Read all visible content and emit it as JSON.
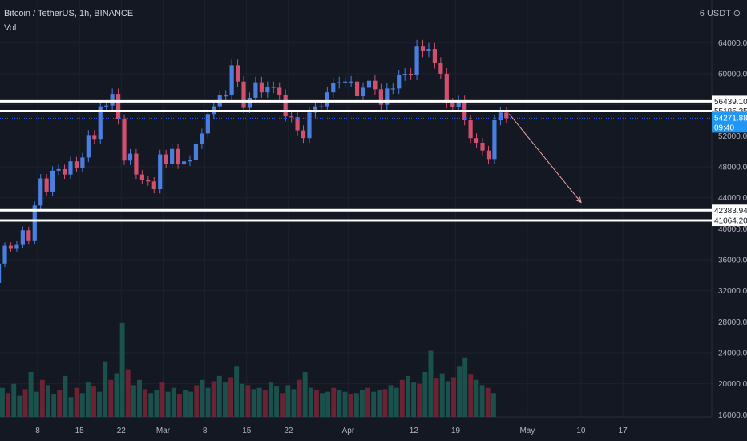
{
  "header": {
    "title": "Bitcoin / TetherUS, 1h, BINANCE",
    "indicator": "Vol",
    "currency": "6 USDT ⊙"
  },
  "chart_data": {
    "type": "candlestick",
    "title": "Bitcoin / TetherUS, 1h, BINANCE",
    "xlabel": "",
    "ylabel": "",
    "ylim": [
      15000,
      69000
    ],
    "y_ticks": [
      16000,
      20000,
      24000,
      28000,
      32000,
      36000,
      40000,
      44000,
      48000,
      52000,
      56000,
      60000,
      64000
    ],
    "x_ticks": [
      "8",
      "15",
      "22",
      "Mar",
      "8",
      "15",
      "22",
      "Apr",
      "12",
      "19",
      "May",
      "10",
      "17"
    ],
    "grid": true,
    "horizontal_levels": [
      {
        "value": 56439.1,
        "label": "56439.10"
      },
      {
        "value": 55185.35,
        "label": "55185.35"
      },
      {
        "value": 42383.94,
        "label": "42383.94"
      },
      {
        "value": 41064.2,
        "label": "41064.20"
      }
    ],
    "last_price": {
      "value": 54271.88,
      "label": "54271.88",
      "countdown": "09:40"
    },
    "price_path": [
      {
        "x": "Feb 1",
        "y": 33000
      },
      {
        "x": "Feb 2",
        "y": 35500
      },
      {
        "x": "Feb 3",
        "y": 37800
      },
      {
        "x": "Feb 4",
        "y": 37500
      },
      {
        "x": "Feb 5",
        "y": 38000
      },
      {
        "x": "Feb 6",
        "y": 39800
      },
      {
        "x": "Feb 7",
        "y": 38500
      },
      {
        "x": "Feb 8",
        "y": 43000
      },
      {
        "x": "Feb 9",
        "y": 46500
      },
      {
        "x": "Feb 10",
        "y": 44800
      },
      {
        "x": "Feb 11",
        "y": 47500
      },
      {
        "x": "Feb 12",
        "y": 47700
      },
      {
        "x": "Feb 13",
        "y": 47000
      },
      {
        "x": "Feb 14",
        "y": 48700
      },
      {
        "x": "Feb 15",
        "y": 47900
      },
      {
        "x": "Feb 16",
        "y": 49200
      },
      {
        "x": "Feb 17",
        "y": 52100
      },
      {
        "x": "Feb 18",
        "y": 51600
      },
      {
        "x": "Feb 19",
        "y": 55800
      },
      {
        "x": "Feb 20",
        "y": 55900
      },
      {
        "x": "Feb 21",
        "y": 57400
      },
      {
        "x": "Feb 22",
        "y": 54100
      },
      {
        "x": "Feb 23",
        "y": 48800
      },
      {
        "x": "Feb 24",
        "y": 49700
      },
      {
        "x": "Feb 25",
        "y": 47000
      },
      {
        "x": "Feb 26",
        "y": 46300
      },
      {
        "x": "Feb 27",
        "y": 46100
      },
      {
        "x": "Feb 28",
        "y": 45100
      },
      {
        "x": "Mar 1",
        "y": 49600
      },
      {
        "x": "Mar 2",
        "y": 48400
      },
      {
        "x": "Mar 3",
        "y": 50300
      },
      {
        "x": "Mar 4",
        "y": 48300
      },
      {
        "x": "Mar 5",
        "y": 48700
      },
      {
        "x": "Mar 6",
        "y": 48900
      },
      {
        "x": "Mar 7",
        "y": 50900
      },
      {
        "x": "Mar 8",
        "y": 52300
      },
      {
        "x": "Mar 9",
        "y": 54800
      },
      {
        "x": "Mar 10",
        "y": 55800
      },
      {
        "x": "Mar 11",
        "y": 57200
      },
      {
        "x": "Mar 12",
        "y": 57200
      },
      {
        "x": "Mar 13",
        "y": 61100
      },
      {
        "x": "Mar 14",
        "y": 59000
      },
      {
        "x": "Mar 15",
        "y": 55600
      },
      {
        "x": "Mar 16",
        "y": 56900
      },
      {
        "x": "Mar 17",
        "y": 58900
      },
      {
        "x": "Mar 18",
        "y": 57600
      },
      {
        "x": "Mar 19",
        "y": 58300
      },
      {
        "x": "Mar 20",
        "y": 58200
      },
      {
        "x": "Mar 21",
        "y": 57300
      },
      {
        "x": "Mar 22",
        "y": 54500
      },
      {
        "x": "Mar 23",
        "y": 54400
      },
      {
        "x": "Mar 24",
        "y": 52700
      },
      {
        "x": "Mar 25",
        "y": 51700
      },
      {
        "x": "Mar 26",
        "y": 55000
      },
      {
        "x": "Mar 27",
        "y": 55800
      },
      {
        "x": "Mar 28",
        "y": 55800
      },
      {
        "x": "Mar 29",
        "y": 57600
      },
      {
        "x": "Mar 30",
        "y": 58800
      },
      {
        "x": "Mar 31",
        "y": 58900
      },
      {
        "x": "Apr 1",
        "y": 59000
      },
      {
        "x": "Apr 2",
        "y": 59000
      },
      {
        "x": "Apr 3",
        "y": 57100
      },
      {
        "x": "Apr 4",
        "y": 58200
      },
      {
        "x": "Apr 5",
        "y": 59100
      },
      {
        "x": "Apr 6",
        "y": 58000
      },
      {
        "x": "Apr 7",
        "y": 56000
      },
      {
        "x": "Apr 8",
        "y": 58100
      },
      {
        "x": "Apr 9",
        "y": 58100
      },
      {
        "x": "Apr 10",
        "y": 59800
      },
      {
        "x": "Apr 11",
        "y": 60000
      },
      {
        "x": "Apr 12",
        "y": 59900
      },
      {
        "x": "Apr 13",
        "y": 63600
      },
      {
        "x": "Apr 14",
        "y": 62900
      },
      {
        "x": "Apr 15",
        "y": 63200
      },
      {
        "x": "Apr 16",
        "y": 61400
      },
      {
        "x": "Apr 17",
        "y": 60000
      },
      {
        "x": "Apr 18",
        "y": 56200
      },
      {
        "x": "Apr 19",
        "y": 55700
      },
      {
        "x": "Apr 20",
        "y": 56500
      },
      {
        "x": "Apr 21",
        "y": 54000
      },
      {
        "x": "Apr 22",
        "y": 51700
      },
      {
        "x": "Apr 23",
        "y": 51100
      },
      {
        "x": "Apr 24",
        "y": 50100
      },
      {
        "x": "Apr 25",
        "y": 49000
      },
      {
        "x": "Apr 26",
        "y": 54000
      },
      {
        "x": "Apr 27",
        "y": 55000
      },
      {
        "x": "Apr 28",
        "y": 54271.88
      }
    ],
    "projection_arrow": {
      "from": {
        "x": "Apr 28",
        "y": 54800
      },
      "to": {
        "x": "May 10",
        "y": 43400
      }
    },
    "volume": {
      "unit": "relative",
      "bars": [
        0.22,
        0.18,
        0.25,
        0.16,
        0.21,
        0.34,
        0.19,
        0.28,
        0.24,
        0.17,
        0.2,
        0.31,
        0.15,
        0.22,
        0.18,
        0.26,
        0.23,
        0.19,
        0.42,
        0.28,
        0.33,
        0.71,
        0.36,
        0.24,
        0.28,
        0.21,
        0.18,
        0.2,
        0.26,
        0.19,
        0.22,
        0.17,
        0.2,
        0.19,
        0.24,
        0.28,
        0.22,
        0.27,
        0.31,
        0.26,
        0.3,
        0.38,
        0.25,
        0.24,
        0.21,
        0.22,
        0.2,
        0.26,
        0.23,
        0.18,
        0.24,
        0.21,
        0.28,
        0.34,
        0.22,
        0.2,
        0.18,
        0.19,
        0.22,
        0.2,
        0.19,
        0.17,
        0.18,
        0.2,
        0.22,
        0.19,
        0.2,
        0.21,
        0.24,
        0.22,
        0.28,
        0.31,
        0.26,
        0.25,
        0.34,
        0.5,
        0.29,
        0.33,
        0.27,
        0.3,
        0.38,
        0.45,
        0.32,
        0.28,
        0.24,
        0.22,
        0.18
      ]
    }
  }
}
